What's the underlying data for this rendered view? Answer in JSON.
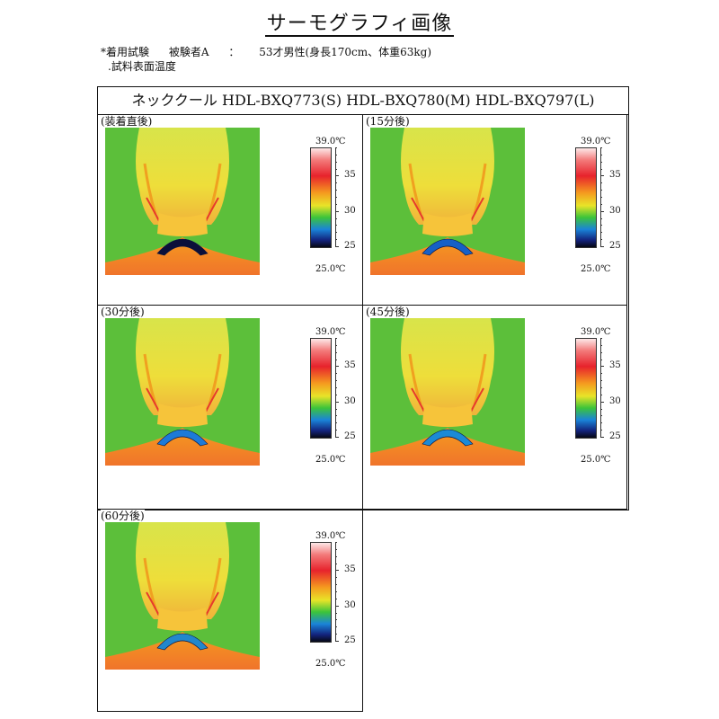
{
  "title": "サーモグラフィ画像",
  "meta": {
    "test": "*着用試験",
    "subject": "被験者A",
    "colon": "：",
    "profile": "53才男性(身長170cm、体重63kg)",
    "measure": ".試料表面温度"
  },
  "header": "ネッククール HDL-BXQ773(S) HDL-BXQ780(M) HDL-BXQ797(L)",
  "scale": {
    "max": "39.0℃",
    "min": "25.0℃",
    "t35": "35",
    "t30": "30",
    "t25": "25"
  },
  "panels": [
    {
      "label": "(装着直後)",
      "band": "#0b0f3a"
    },
    {
      "label": "(15分後)",
      "band": "#1660c6"
    },
    {
      "label": "(30分後)",
      "band": "#1c7ad8"
    },
    {
      "label": "(45分後)",
      "band": "#1b8ad6"
    },
    {
      "label": "(60分後)",
      "band": "#2287cc"
    }
  ]
}
